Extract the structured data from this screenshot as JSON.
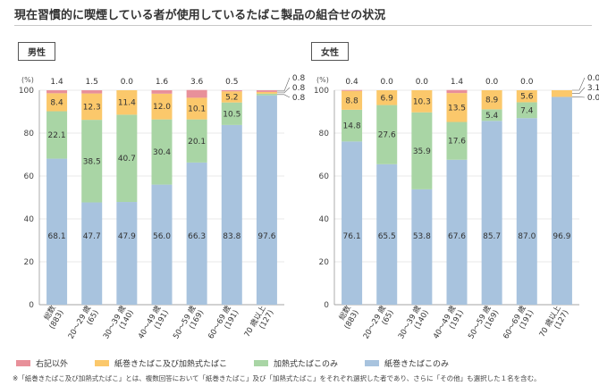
{
  "title": "現在習慣的に喫煙している者が使用しているたばこ製品の組合せの状況",
  "legend": [
    {
      "label": "右記以外",
      "color": "#e8909a"
    },
    {
      "label": "紙巻きたばこ及び加熱式たばこ",
      "color": "#fbc86b"
    },
    {
      "label": "加熱式たばこのみ",
      "color": "#a9d5a5"
    },
    {
      "label": "紙巻きたばこのみ",
      "color": "#a8c3de"
    }
  ],
  "note": "※「紙巻きたばこ及び加熱式たばこ」とは、複数回答において「紙巻きたばこ」及び「加熱式たばこ」をそれぞれ選択した者であり、さらに「その他」も選択した１名を含む。",
  "chart_data": [
    {
      "type": "bar",
      "stacked": true,
      "panel_label": "男性",
      "ylabel": "(%)",
      "ylim": [
        0,
        100
      ],
      "yticks": [
        0,
        20,
        40,
        60,
        80,
        100
      ],
      "categories": [
        "総数\n(883)",
        "20～29 歳\n(65)",
        "30～39 歳\n(140)",
        "40～49 歳\n(191)",
        "50～59 歳\n(169)",
        "60～69 歳\n(191)",
        "70 歳以上\n(127)"
      ],
      "series": [
        {
          "name": "紙巻きたばこのみ",
          "values": [
            68.1,
            47.7,
            47.9,
            56.0,
            66.3,
            83.8,
            97.6
          ]
        },
        {
          "name": "加熱式たばこのみ",
          "values": [
            22.1,
            38.5,
            40.7,
            30.4,
            20.1,
            10.5,
            0.8
          ]
        },
        {
          "name": "紙巻きたばこ及び加熱式たばこ",
          "values": [
            8.4,
            12.3,
            11.4,
            12.0,
            10.1,
            5.2,
            0.8
          ]
        },
        {
          "name": "右記以外",
          "values": [
            1.4,
            1.5,
            0.0,
            1.6,
            3.6,
            0.5,
            0.8
          ]
        }
      ]
    },
    {
      "type": "bar",
      "stacked": true,
      "panel_label": "女性",
      "ylabel": "(%)",
      "ylim": [
        0,
        100
      ],
      "yticks": [
        0,
        20,
        40,
        60,
        80,
        100
      ],
      "categories": [
        "総数\n(883)",
        "20～29 歳\n(65)",
        "30～39 歳\n(140)",
        "40～49 歳\n(191)",
        "50～59 歳\n(169)",
        "60～69 歳\n(191)",
        "70 歳以上\n(127)"
      ],
      "series": [
        {
          "name": "紙巻きたばこのみ",
          "values": [
            76.1,
            65.5,
            53.8,
            67.6,
            85.7,
            87.0,
            96.9
          ]
        },
        {
          "name": "加熱式たばこのみ",
          "values": [
            14.8,
            27.6,
            35.9,
            17.6,
            5.4,
            7.4,
            0.0
          ]
        },
        {
          "name": "紙巻きたばこ及び加熱式たばこ",
          "values": [
            8.8,
            6.9,
            10.3,
            13.5,
            8.9,
            5.6,
            3.1
          ]
        },
        {
          "name": "右記以外",
          "values": [
            0.4,
            0.0,
            0.0,
            1.4,
            0.0,
            0.0,
            0.0
          ]
        }
      ]
    }
  ]
}
